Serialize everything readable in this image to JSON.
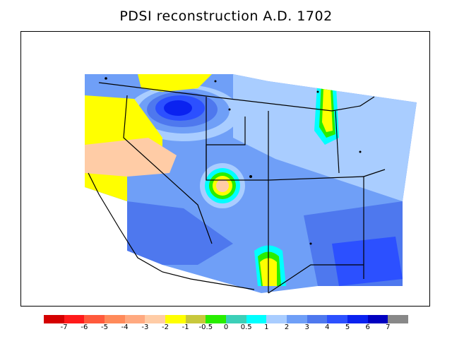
{
  "title": "PDSI reconstruction A.D. 1702",
  "legend": {
    "colors": [
      "#d40000",
      "#ff1a1a",
      "#ff5a3c",
      "#ff8a5a",
      "#ffa980",
      "#ffcca6",
      "#ffff00",
      "#c8c83c",
      "#28ee00",
      "#3ccfb8",
      "#00ffff",
      "#a9cdff",
      "#6f9ff7",
      "#4e78ee",
      "#2c50ff",
      "#0a22f0",
      "#0000c0",
      "#888888"
    ],
    "ticks": [
      "-7",
      "-6",
      "-5",
      "-4",
      "-3",
      "-2",
      "-1",
      "-0.5",
      "0",
      "0.5",
      "1",
      "2",
      "3",
      "4",
      "5",
      "6",
      "7"
    ]
  },
  "map": {
    "region": "Western United States",
    "variable": "Palmer Drought Severity Index",
    "year": "1702"
  }
}
